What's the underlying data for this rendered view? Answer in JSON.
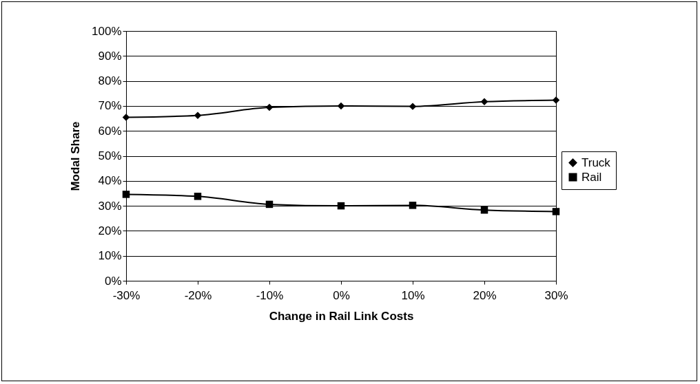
{
  "chart_data": {
    "type": "line",
    "xlabel": "Change in Rail Link Costs",
    "ylabel": "Modal Share",
    "categories": [
      "-30%",
      "-20%",
      "-10%",
      "0%",
      "10%",
      "20%",
      "30%"
    ],
    "series": [
      {
        "name": "Truck",
        "color": "#000000",
        "marker": "diamond",
        "values": [
          65.4,
          66.2,
          69.4,
          70,
          69.8,
          71.7,
          72.3
        ]
      },
      {
        "name": "Rail",
        "color": "#000000",
        "marker": "square",
        "values": [
          34.6,
          33.8,
          30.6,
          30,
          30.2,
          28.3,
          27.7
        ]
      }
    ],
    "ylim": [
      0,
      100
    ],
    "yticks": [
      {
        "value": 0,
        "label": "0%"
      },
      {
        "value": 10,
        "label": "10%"
      },
      {
        "value": 20,
        "label": "20%"
      },
      {
        "value": 30,
        "label": "30%"
      },
      {
        "value": 40,
        "label": "40%"
      },
      {
        "value": 50,
        "label": "50%"
      },
      {
        "value": 60,
        "label": "60%"
      },
      {
        "value": 70,
        "label": "70%"
      },
      {
        "value": 80,
        "label": "80%"
      },
      {
        "value": 90,
        "label": "90%"
      },
      {
        "value": 100,
        "label": "100%"
      }
    ],
    "grid": "y",
    "legend": "right",
    "line_style": "solid"
  }
}
